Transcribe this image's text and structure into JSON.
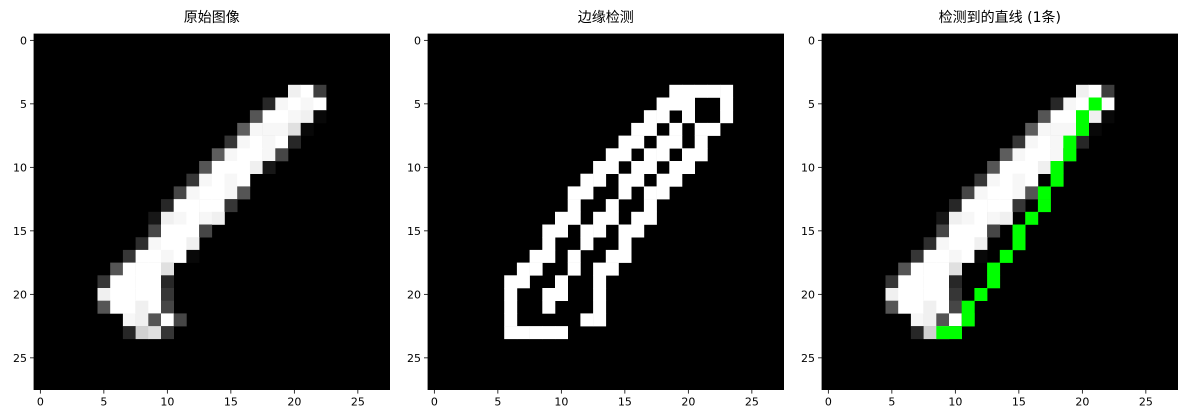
{
  "panels": [
    {
      "id": "original",
      "title": "原始图像",
      "kind": "grayscale-image",
      "rows": [
        "............................",
        "............................",
        "............................",
        "............................",
        "....................vx8.....",
        "..................5wxwx.....",
        ".................bxxwv1.....",
        "................cwwwt1......",
        "...............7wxwx5.......",
        "..............cwxxw9........",
        ".............bxxxv3.........",
        "............7wxwx...........",
        "...........9wxxwb...........",
        "..........5xxxx7............",
        ".........3vwxwv.............",
        ".........9xxx9..............",
        "........6wxxv...............",
        ".......7xxwx1...............",
        "......bxxxt.................",
        ".....7xxxx5.................",
        ".....vxxxx7.................",
        ".....bxxvx9.................",
        ".......wvbx9................",
        ".......5rt7.................",
        "............................",
        "............................",
        "............................",
        "............................"
      ]
    },
    {
      "id": "edges",
      "title": "边缘检测",
      "kind": "binary-image",
      "rows": [
        "............................",
        "............................",
        "............................",
        "............................",
        "...................#####....",
        "..................###..#....",
        ".................##.#..#....",
        "................##.#.##.....",
        "...............##.##.#......",
        "..............##.##.##......",
        ".............##.##.##.......",
        "............##.##.##........",
        "...........##..#.##.........",
        "...........#..#..#..........",
        "..........##.##.##..........",
        ".........##.##.##...........",
        ".........#..#..#............",
        "........##.#..##............",
        ".......##..#.##.............",
        "......##..#..#..............",
        "......#..##..#..............",
        "......#..#...#..............",
        "......#.....##..............",
        "......#####.................",
        "............................",
        "............................",
        "............................",
        "............................"
      ]
    },
    {
      "id": "lines",
      "title": "检测到的直线 (1条)",
      "kind": "grayscale-image-with-line",
      "line_color": "#00ff00",
      "line_cells": [
        [
          21,
          5
        ],
        [
          20,
          6
        ],
        [
          20,
          7
        ],
        [
          19,
          8
        ],
        [
          19,
          9
        ],
        [
          18,
          10
        ],
        [
          18,
          11
        ],
        [
          17,
          12
        ],
        [
          17,
          13
        ],
        [
          16,
          14
        ],
        [
          15,
          15
        ],
        [
          15,
          16
        ],
        [
          14,
          17
        ],
        [
          13,
          18
        ],
        [
          13,
          19
        ],
        [
          12,
          20
        ],
        [
          11,
          21
        ],
        [
          11,
          22
        ],
        [
          10,
          23
        ],
        [
          9,
          23
        ]
      ]
    }
  ],
  "axes": {
    "x_ticks": [
      0,
      5,
      10,
      15,
      20,
      25
    ],
    "y_ticks": [
      0,
      5,
      10,
      15,
      20,
      25
    ],
    "pixel_count": 28
  },
  "colors": {
    "background": "#000000",
    "axis": "#000000"
  }
}
